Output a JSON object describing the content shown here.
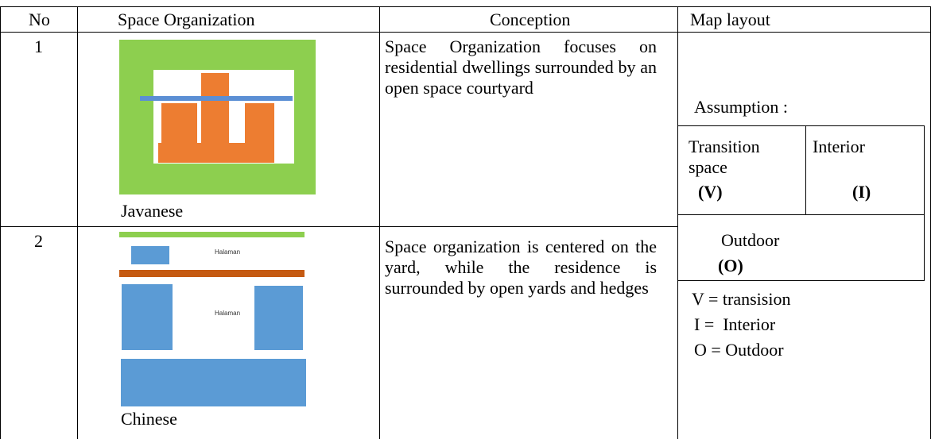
{
  "table": {
    "header": [
      "No",
      "Space Organization",
      "Conception",
      "Map layout"
    ],
    "rows": [
      {
        "no": "1",
        "caption": "Javanese",
        "conception": "Space Organization focuses on residential dwellings surrounded by an open space courtyard"
      },
      {
        "no": "2",
        "caption": "Chinese",
        "conception": "Space organization is centered on the yard, while the residence is surrounded by open yards and hedges",
        "image_labels": [
          "Halaman",
          "Halaman"
        ]
      }
    ],
    "map_layout": {
      "title": "Assumption :",
      "transition": "Transition space",
      "transition_code": "(V)",
      "interior": "Interior",
      "interior_code": "(I)",
      "outdoor": "Outdoor",
      "outdoor_code": "(O)",
      "legend": [
        "V = transision",
        "I =  Interior",
        "O = Outdoor"
      ]
    }
  }
}
